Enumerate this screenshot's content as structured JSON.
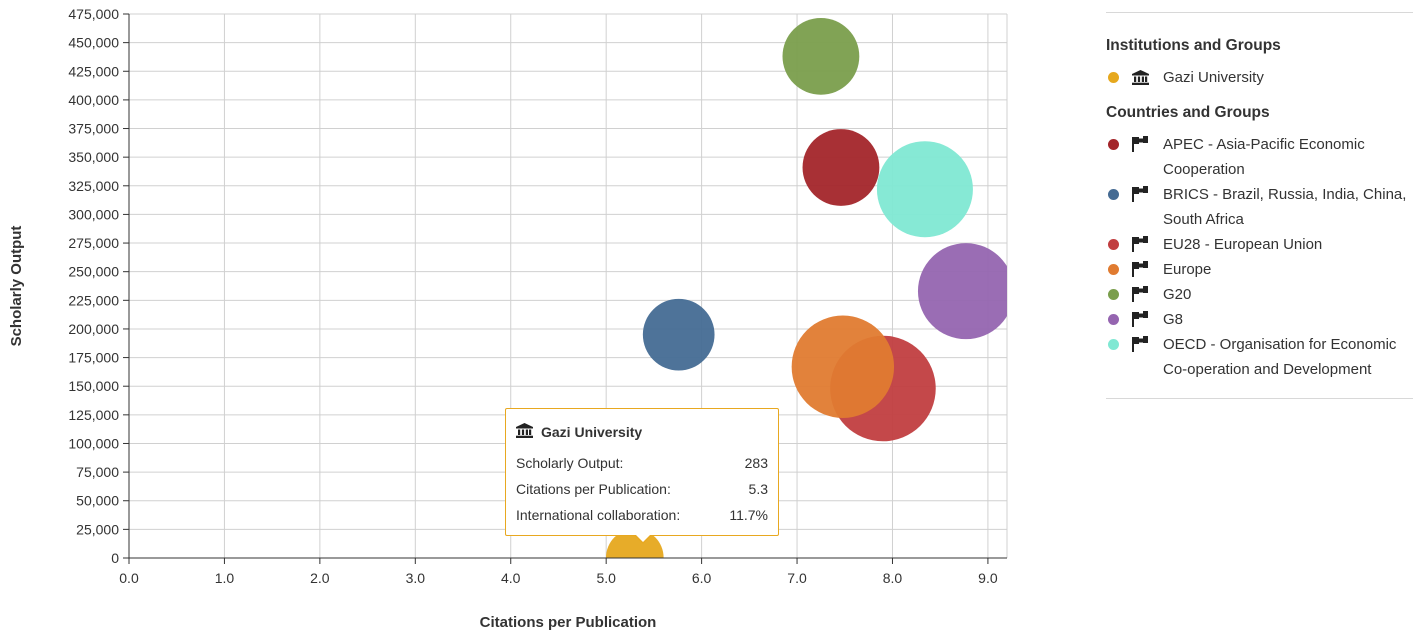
{
  "chart_data": {
    "type": "scatter",
    "xlabel": "Citations per Publication",
    "ylabel": "Scholarly Output",
    "xlim": [
      0,
      9.2
    ],
    "ylim": [
      0,
      475000
    ],
    "x_ticks": [
      "0.0",
      "1.0",
      "2.0",
      "3.0",
      "4.0",
      "5.0",
      "6.0",
      "7.0",
      "8.0",
      "9.0"
    ],
    "y_ticks": [
      "0",
      "25,000",
      "50,000",
      "75,000",
      "100,000",
      "125,000",
      "150,000",
      "175,000",
      "200,000",
      "225,000",
      "250,000",
      "275,000",
      "300,000",
      "325,000",
      "350,000",
      "375,000",
      "400,000",
      "425,000",
      "450,000",
      "475,000"
    ],
    "grid": true,
    "legend_position": "right",
    "series": [
      {
        "name": "Gazi University",
        "x": 5.3,
        "y": 283,
        "color": "#e6a81e",
        "relative_size": 0.9
      },
      {
        "name": "APEC - Asia-Pacific Economic Cooperation",
        "x": 7.46,
        "y": 341000,
        "color": "#a3252a",
        "relative_size": 1.2
      },
      {
        "name": "BRICS - Brazil, Russia, India, China, South Africa",
        "x": 5.76,
        "y": 195000,
        "color": "#456b93",
        "relative_size": 1.12
      },
      {
        "name": "EU28 - European Union",
        "x": 7.9,
        "y": 148000,
        "color": "#c13e40",
        "relative_size": 1.65
      },
      {
        "name": "Europe",
        "x": 7.48,
        "y": 167000,
        "color": "#e07b30",
        "relative_size": 1.6
      },
      {
        "name": "G20",
        "x": 7.25,
        "y": 438000,
        "color": "#7a9e4c",
        "relative_size": 1.2
      },
      {
        "name": "G8",
        "x": 8.77,
        "y": 233000,
        "color": "#9565b0",
        "relative_size": 1.5
      },
      {
        "name": "OECD - Organisation for Economic Co-operation and Development",
        "x": 8.34,
        "y": 322000,
        "color": "#80e8d3",
        "relative_size": 1.5
      }
    ]
  },
  "tooltip": {
    "title": "Gazi University",
    "rows": [
      {
        "label": "Scholarly Output:",
        "value": "283"
      },
      {
        "label": "Citations per Publication:",
        "value": "5.3"
      },
      {
        "label": "International collaboration:",
        "value": "11.7%"
      }
    ]
  },
  "legend": {
    "group1_title": "Institutions and Groups",
    "group1_items": [
      {
        "label": "Gazi University",
        "color": "#e6a81e",
        "icon": "institution-icon"
      }
    ],
    "group2_title": "Countries and Groups",
    "group2_items": [
      {
        "label": "APEC - Asia-Pacific Economic Cooperation",
        "color": "#a3252a",
        "icon": "flag-icon"
      },
      {
        "label": "BRICS - Brazil, Russia, India, China, South Africa",
        "color": "#456b93",
        "icon": "flag-icon"
      },
      {
        "label": "EU28 - European Union",
        "color": "#c13e40",
        "icon": "flag-icon"
      },
      {
        "label": "Europe",
        "color": "#e07b30",
        "icon": "flag-icon"
      },
      {
        "label": "G20",
        "color": "#7a9e4c",
        "icon": "flag-icon"
      },
      {
        "label": "G8",
        "color": "#9565b0",
        "icon": "flag-icon"
      },
      {
        "label": "OECD - Organisation for Economic Co-operation and Development",
        "color": "#80e8d3",
        "icon": "flag-icon"
      }
    ]
  }
}
